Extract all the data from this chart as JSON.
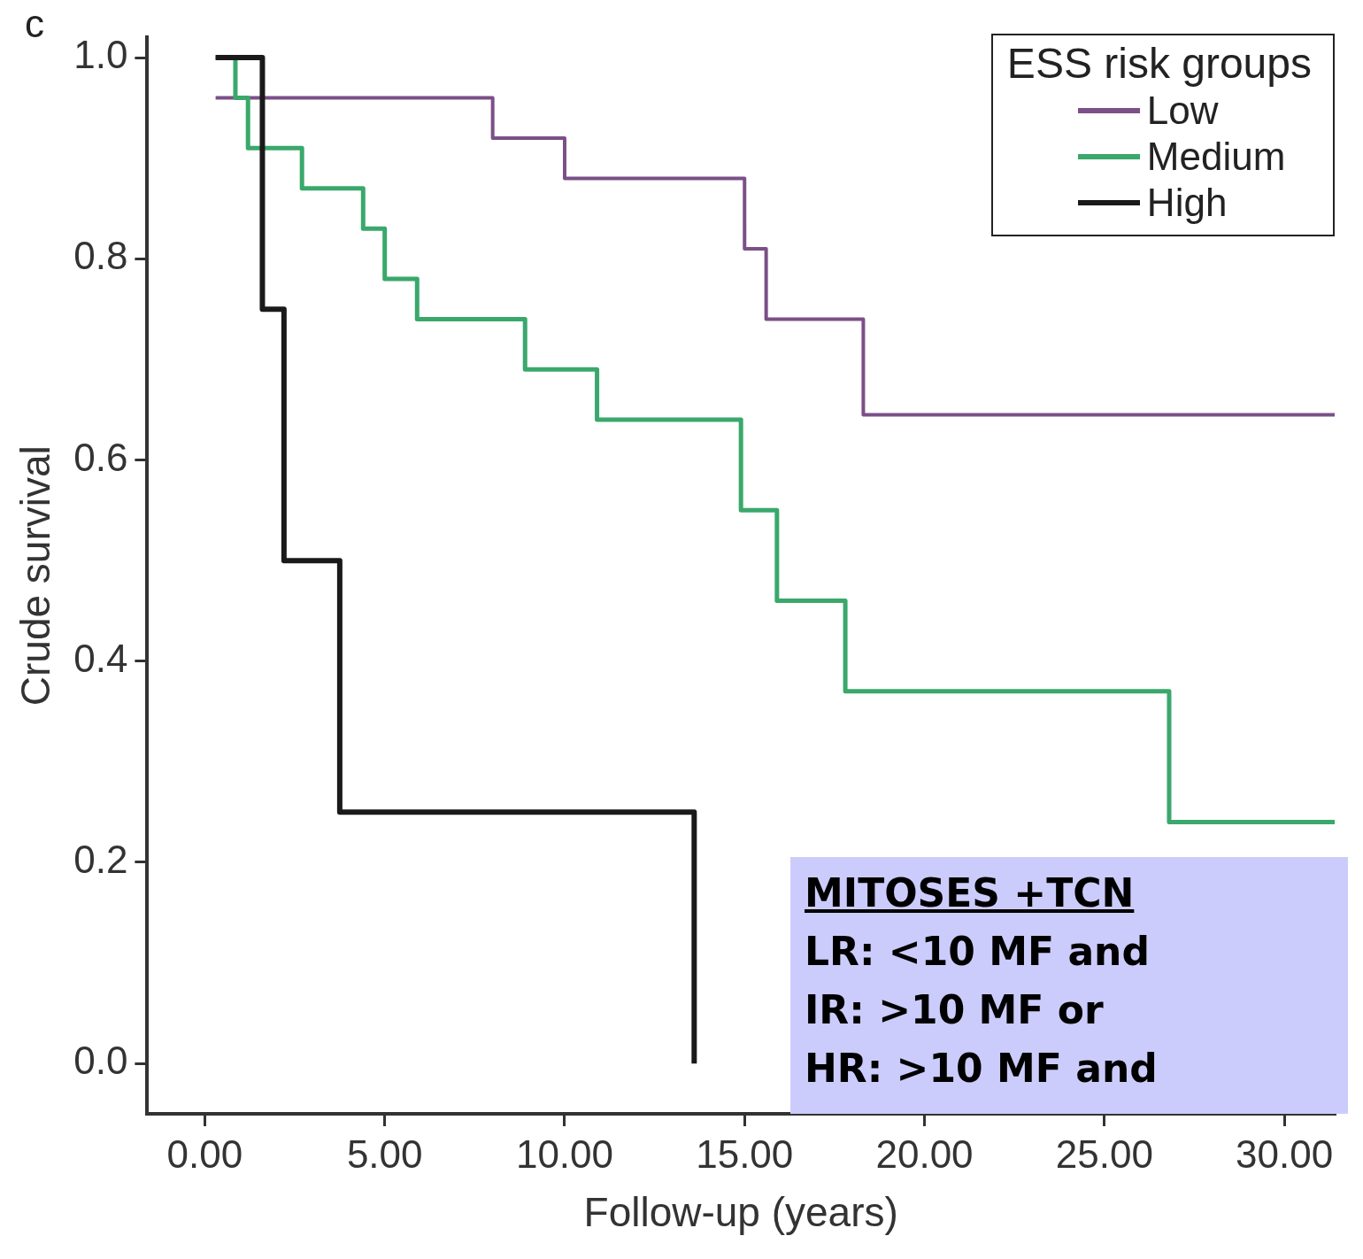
{
  "chart_data": {
    "type": "step",
    "xlabel": "Follow-up (years)",
    "ylabel": "Crude survival",
    "legend_title": "ESS risk groups",
    "legend": "top right",
    "grid": false,
    "line_style": "solid",
    "marker": "none",
    "xlim": [
      -1.6,
      31.4
    ],
    "xticks": [
      {
        "value": 0,
        "label": "0.00"
      },
      {
        "value": 5,
        "label": "5.00"
      },
      {
        "value": 10,
        "label": "10.00"
      },
      {
        "value": 15,
        "label": "15.00"
      },
      {
        "value": 20,
        "label": "20.00"
      },
      {
        "value": 25,
        "label": "25.00"
      },
      {
        "value": 30,
        "label": "30.00"
      }
    ],
    "ylim": [
      -0.05,
      1.02
    ],
    "yticks": [
      {
        "value": 0,
        "label": "0.0"
      },
      {
        "value": 0.2,
        "label": "0.2"
      },
      {
        "value": 0.4,
        "label": "0.4"
      },
      {
        "value": 0.6,
        "label": "0.6"
      },
      {
        "value": 0.8,
        "label": "0.8"
      },
      {
        "value": 1,
        "label": "1.0"
      }
    ],
    "series": [
      {
        "name": "Low",
        "color": "#7b4f88",
        "x": [
          0.3,
          8.0,
          10.0,
          15.0,
          15.6,
          18.3,
          31.4
        ],
        "values": [
          0.96,
          0.92,
          0.88,
          0.81,
          0.74,
          0.645,
          0.645
        ]
      },
      {
        "name": "Medium",
        "color": "#3aa86b",
        "x": [
          0.3,
          0.85,
          1.2,
          2.7,
          4.4,
          5.0,
          5.9,
          8.9,
          10.9,
          14.9,
          15.9,
          17.8,
          26.8,
          31.4
        ],
        "values": [
          1.0,
          0.96,
          0.91,
          0.87,
          0.83,
          0.78,
          0.74,
          0.69,
          0.64,
          0.55,
          0.46,
          0.37,
          0.24,
          0.24
        ]
      },
      {
        "name": "High",
        "color": "#1a1a1a",
        "x": [
          0.3,
          1.6,
          2.2,
          3.75,
          13.6
        ],
        "values": [
          1.0,
          0.75,
          0.5,
          0.25,
          0.0
        ]
      }
    ],
    "annotations": [
      "c",
      "MITOSES +TCN",
      "LR: <10 MF and",
      "IR: >10 MF or",
      "HR: >10 MF and"
    ]
  }
}
